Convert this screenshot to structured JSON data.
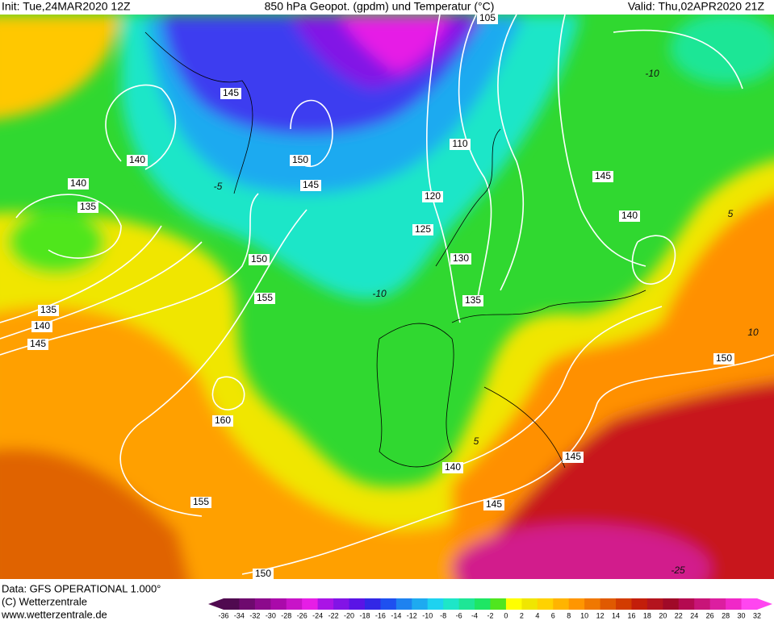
{
  "header": {
    "init": "Init: Tue,24MAR2020 12Z",
    "title": "850 hPa Geopot. (gpdm) und Temperatur (°C)",
    "valid": "Valid: Thu,02APR2020 21Z"
  },
  "contour_labels": [
    "105",
    "145",
    "140",
    "150",
    "145",
    "110",
    "120",
    "125",
    "130",
    "140",
    "135",
    "150",
    "155",
    "135",
    "135",
    "140",
    "145",
    "145",
    "140",
    "150",
    "160",
    "140",
    "145",
    "155",
    "145",
    "150"
  ],
  "isotherm_labels": [
    "-10",
    "-10",
    "10",
    "-25",
    "5",
    "-5",
    "5"
  ],
  "footer": {
    "data": "Data: GFS OPERATIONAL 1.000°",
    "copyright": "(C) Wetterzentrale",
    "url": "www.wetterzentrale.de"
  },
  "colorbar": {
    "labels": [
      "-36",
      "-34",
      "-32",
      "-30",
      "-28",
      "-26",
      "-24",
      "-22",
      "-20",
      "-18",
      "-16",
      "-14",
      "-12",
      "-10",
      "-8",
      "-6",
      "-4",
      "-2",
      "0",
      "2",
      "4",
      "6",
      "8",
      "10",
      "12",
      "14",
      "16",
      "18",
      "20",
      "22",
      "24",
      "26",
      "28",
      "30",
      "32"
    ]
  }
}
